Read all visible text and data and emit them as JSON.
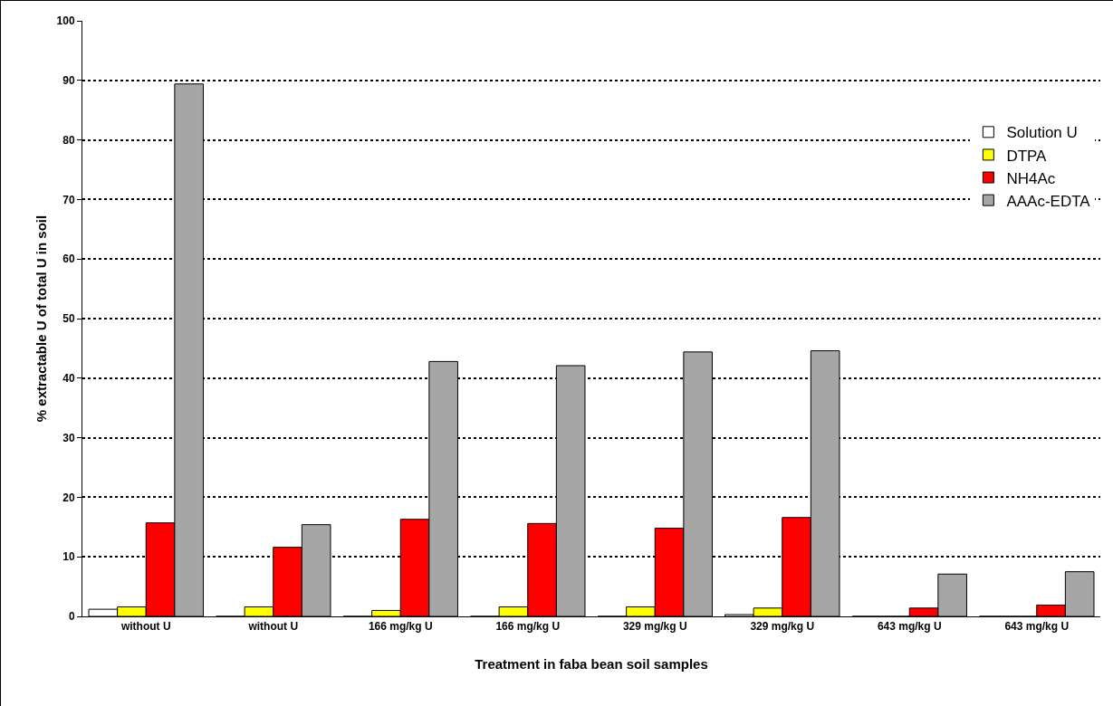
{
  "chart_data": {
    "type": "bar",
    "xlabel": "Treatment in faba bean soil samples",
    "ylabel": "% extractable U of total U in soil",
    "categories": [
      "without U",
      "without U",
      "166 mg/kg U",
      "166 mg/kg U",
      "329 mg/kg U",
      "329 mg/kg U",
      "643 mg/kg U",
      "643 mg/kg U"
    ],
    "series": [
      {
        "name": "Solution U",
        "color": "#ffffff",
        "values": [
          1.2,
          0,
          0,
          0,
          0,
          0.3,
          0,
          0
        ]
      },
      {
        "name": "DTPA",
        "color": "#ffff00",
        "values": [
          1.6,
          1.6,
          1.0,
          1.6,
          1.6,
          1.4,
          0,
          0
        ]
      },
      {
        "name": "NH4Ac",
        "color": "#ff0000",
        "values": [
          15.7,
          11.6,
          16.3,
          15.6,
          14.8,
          16.6,
          1.4,
          1.9
        ]
      },
      {
        "name": "AAAc-EDTA",
        "color": "#a6a6a6",
        "values": [
          89.4,
          15.4,
          42.8,
          42.1,
          44.4,
          44.6,
          7.1,
          7.5
        ]
      }
    ],
    "ylim": [
      0,
      100
    ],
    "yticks": [
      0,
      10,
      20,
      30,
      40,
      50,
      60,
      70,
      80,
      90,
      100
    ],
    "grid": "y",
    "legend": "top right"
  }
}
